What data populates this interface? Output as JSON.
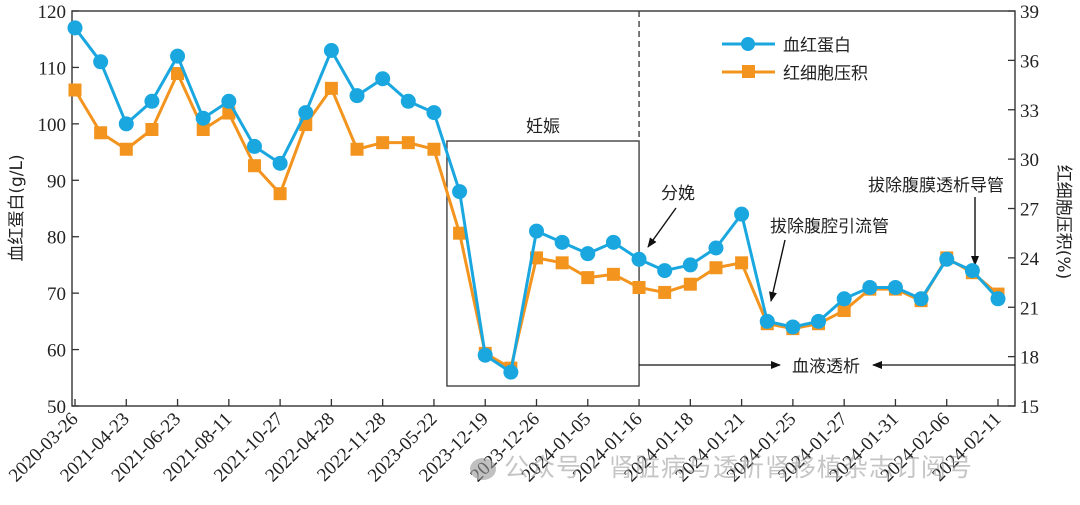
{
  "chart_data": {
    "type": "line",
    "title": "",
    "xlabel": "",
    "ylabel": "血红蛋白(g/L)",
    "y2label": "红细胞压积(%)",
    "ylim": [
      50,
      120
    ],
    "y2lim": [
      15,
      39
    ],
    "yticks": [
      50,
      60,
      70,
      80,
      90,
      100,
      110,
      120
    ],
    "y2ticks": [
      15,
      18,
      21,
      24,
      27,
      30,
      33,
      36,
      39
    ],
    "xtick_labels": [
      "2020-03-26",
      "2021-04-23",
      "2021-06-23",
      "2021-08-11",
      "2021-10-27",
      "2022-04-28",
      "2022-11-28",
      "2023-05-22",
      "2023-12-19",
      "2023-12-26",
      "2024-01-05",
      "2024-01-16",
      "2024-01-18",
      "2024-01-21",
      "2024-01-25",
      "2024-01-27",
      "2024-01-31",
      "2024-02-06",
      "2024-02-11"
    ],
    "point_count": 37,
    "grid": false,
    "legend_position": "top-right",
    "series": [
      {
        "name": "血红蛋白",
        "axis": "left",
        "marker": "circle",
        "color": "#1aa7e0",
        "values": [
          117,
          111,
          100,
          104,
          112,
          101,
          104,
          96,
          93,
          102,
          113,
          105,
          108,
          104,
          102,
          88,
          59,
          56,
          81,
          79,
          77,
          79,
          76,
          74,
          75,
          78,
          84,
          65,
          64,
          65,
          69,
          71,
          71,
          69,
          76,
          74,
          69
        ]
      },
      {
        "name": "红细胞压积",
        "axis": "right",
        "marker": "square",
        "color": "#f3941e",
        "values": [
          34.2,
          31.6,
          30.6,
          31.8,
          35.2,
          31.8,
          32.8,
          29.6,
          27.9,
          32.1,
          34.3,
          30.6,
          31.0,
          31.0,
          30.6,
          25.5,
          18.2,
          17.3,
          24.0,
          23.7,
          22.8,
          23.0,
          22.2,
          21.9,
          22.4,
          23.4,
          23.7,
          20.0,
          19.7,
          20.0,
          20.8,
          22.1,
          22.1,
          21.4,
          24.0,
          23.1,
          21.8
        ]
      }
    ],
    "annotations": {
      "pregnancy": "妊娠",
      "delivery": "分娩",
      "drain_removal": "拔除腹腔引流管",
      "pd_catheter_removal": "拔除腹膜透析导管",
      "hemodialysis": "血液透析"
    }
  },
  "watermark": "公众号 · 肾脏病与透析肾移植杂志订阅号"
}
